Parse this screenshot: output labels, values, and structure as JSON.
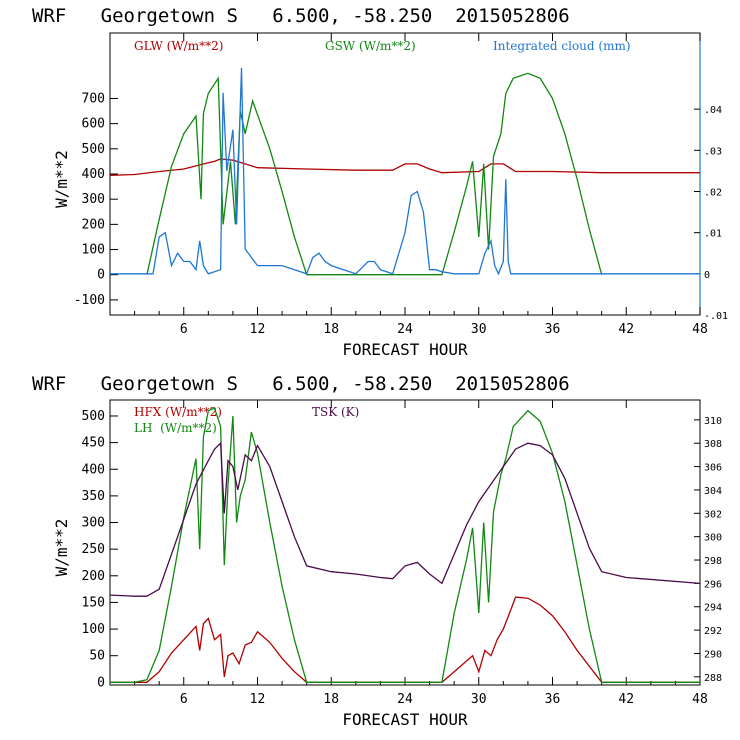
{
  "chart_data": [
    {
      "type": "line",
      "title": "WRF   Georgetown S   6.500, -58.250  2015052806",
      "xlabel": "FORECAST HOUR",
      "ylabel": "W/m**2",
      "xlim": [
        0,
        48
      ],
      "ylim": [
        -160,
        960
      ],
      "y2lim": [
        -0.01,
        0.0585
      ],
      "xticks": [
        "6",
        "12",
        "18",
        "24",
        "30",
        "36",
        "42",
        "48"
      ],
      "yticks": [
        "-100",
        "0",
        "100",
        "200",
        "300",
        "400",
        "500",
        "600",
        "700"
      ],
      "y2ticks": [
        "-.01",
        "0",
        ".01",
        ".02",
        ".03",
        ".04"
      ],
      "series": [
        {
          "name": "GLW (W/m**2)",
          "color": "#b00000",
          "axis": "left",
          "x": [
            0,
            2,
            4,
            6,
            8,
            8.5,
            9,
            10,
            11,
            12,
            16,
            20,
            23,
            24,
            25,
            26,
            27,
            30,
            31,
            32,
            33,
            36,
            40,
            48
          ],
          "y": [
            395,
            398,
            410,
            420,
            445,
            450,
            460,
            455,
            440,
            425,
            420,
            415,
            415,
            440,
            440,
            420,
            405,
            410,
            440,
            440,
            410,
            410,
            405,
            405
          ]
        },
        {
          "name": "GSW (W/m**2)",
          "color": "#118811",
          "axis": "left",
          "x": [
            3,
            4,
            5,
            6,
            7,
            7.4,
            7.6,
            8,
            8.8,
            9.2,
            9.8,
            10.2,
            10.6,
            11,
            11.6,
            13,
            14,
            15,
            16,
            27,
            28,
            29,
            29.5,
            30,
            30.4,
            30.8,
            31.2,
            31.8,
            32.2,
            32.8,
            34,
            35,
            36,
            37,
            38,
            39,
            40
          ],
          "y": [
            0,
            220,
            430,
            560,
            630,
            300,
            640,
            720,
            780,
            200,
            450,
            200,
            650,
            560,
            690,
            500,
            330,
            150,
            0,
            0,
            170,
            350,
            450,
            150,
            440,
            100,
            470,
            560,
            720,
            780,
            800,
            780,
            700,
            560,
            380,
            180,
            0
          ]
        },
        {
          "name": "Integrated cloud (mm)",
          "color": "#1f77d4",
          "axis": "right",
          "x": [
            0,
            3.5,
            4,
            4.5,
            5,
            5.5,
            6,
            6.5,
            7,
            7.3,
            7.6,
            8,
            9,
            9.2,
            9.5,
            10,
            10.3,
            10.7,
            11,
            12,
            14,
            16,
            16.5,
            17,
            17.5,
            18,
            19,
            20,
            21,
            21.5,
            22,
            23,
            24,
            24.5,
            25,
            25.5,
            26,
            26.5,
            27,
            28,
            30,
            30.5,
            31,
            31.3,
            31.6,
            32,
            32.2,
            32.4,
            32.6,
            48
          ],
          "y": [
            0,
            0,
            0.009,
            0.01,
            0.002,
            0.005,
            0.003,
            0.003,
            0.001,
            0.008,
            0.002,
            0,
            0.001,
            0.044,
            0.025,
            0.035,
            0.012,
            0.05,
            0.006,
            0.002,
            0.002,
            0,
            0.004,
            0.005,
            0.003,
            0.002,
            0.001,
            0,
            0.003,
            0.003,
            0.001,
            0,
            0.01,
            0.019,
            0.02,
            0.015,
            0.001,
            0.001,
            0.0005,
            0,
            0,
            0.005,
            0.008,
            0.002,
            0,
            0.003,
            0.023,
            0.003,
            0,
            0
          ]
        }
      ]
    },
    {
      "type": "line",
      "title": "WRF   Georgetown S   6.500, -58.250  2015052806",
      "xlabel": "FORECAST HOUR",
      "ylabel": "W/m**2",
      "xlim": [
        0,
        48
      ],
      "ylim": [
        -5,
        530
      ],
      "y2lim": [
        287.3,
        311.7
      ],
      "xticks": [
        "6",
        "12",
        "18",
        "24",
        "30",
        "36",
        "42",
        "48"
      ],
      "yticks": [
        "0",
        "50",
        "100",
        "150",
        "200",
        "250",
        "300",
        "350",
        "400",
        "450",
        "500"
      ],
      "y2ticks": [
        "288",
        "290",
        "292",
        "294",
        "296",
        "298",
        "300",
        "302",
        "304",
        "306",
        "308",
        "310"
      ],
      "series": [
        {
          "name": "HFX (W/m**2)",
          "color": "#b00000",
          "axis": "left",
          "x": [
            0,
            2,
            3,
            4,
            5,
            6,
            7,
            7.3,
            7.6,
            8,
            8.5,
            9,
            9.3,
            9.6,
            10,
            10.5,
            11,
            11.5,
            12,
            13,
            14,
            15,
            16,
            27,
            28,
            29,
            29.5,
            30,
            30.5,
            31,
            31.5,
            32,
            32.5,
            33,
            34,
            35,
            36,
            37,
            38,
            39,
            40,
            48
          ],
          "y": [
            0,
            0,
            0,
            20,
            55,
            80,
            105,
            60,
            110,
            120,
            80,
            90,
            10,
            50,
            55,
            35,
            70,
            75,
            95,
            75,
            45,
            20,
            0,
            0,
            20,
            40,
            50,
            20,
            60,
            50,
            80,
            100,
            130,
            160,
            158,
            145,
            125,
            95,
            60,
            30,
            0,
            0
          ]
        },
        {
          "name": "LH  (W/m**2)",
          "color": "#118811",
          "axis": "left",
          "x": [
            0,
            2,
            3,
            4,
            5,
            6,
            7,
            7.3,
            7.6,
            8,
            8.5,
            9,
            9.3,
            9.6,
            10,
            10.3,
            10.6,
            11,
            11.5,
            12,
            13,
            14,
            15,
            16,
            27,
            28,
            29,
            29.5,
            30,
            30.4,
            30.8,
            31.2,
            31.8,
            32.2,
            32.8,
            34,
            35,
            36,
            37,
            38,
            39,
            40,
            48
          ],
          "y": [
            0,
            0,
            5,
            60,
            180,
            310,
            420,
            250,
            460,
            510,
            515,
            480,
            220,
            370,
            500,
            300,
            350,
            380,
            470,
            430,
            300,
            180,
            80,
            0,
            0,
            130,
            230,
            290,
            130,
            300,
            150,
            320,
            390,
            420,
            480,
            510,
            490,
            430,
            340,
            220,
            100,
            0,
            0
          ]
        },
        {
          "name": "TSK (K)",
          "color": "#4a0a4a",
          "axis": "right",
          "x": [
            0,
            2,
            3,
            4,
            5,
            6,
            7,
            8,
            8.5,
            9,
            9.3,
            9.6,
            10,
            10.4,
            11,
            11.5,
            12,
            13,
            14,
            15,
            16,
            18,
            20,
            22,
            23,
            24,
            25,
            26,
            27,
            28,
            29,
            30,
            31,
            32,
            33,
            34,
            35,
            36,
            37,
            38,
            39,
            40,
            42,
            48
          ],
          "y": [
            295.0,
            294.9,
            294.9,
            295.5,
            298.5,
            301.5,
            304.5,
            306.5,
            307.5,
            308.0,
            302.0,
            306.5,
            306.0,
            304.0,
            307.0,
            306.5,
            307.8,
            306.0,
            303.0,
            300.0,
            297.5,
            297.0,
            296.8,
            296.5,
            296.4,
            297.5,
            297.8,
            296.8,
            296.0,
            298.5,
            301.0,
            303.0,
            304.5,
            306.0,
            307.5,
            308.0,
            307.8,
            307.0,
            305.0,
            302.0,
            299.0,
            297.0,
            296.5,
            296.0
          ]
        }
      ]
    }
  ]
}
